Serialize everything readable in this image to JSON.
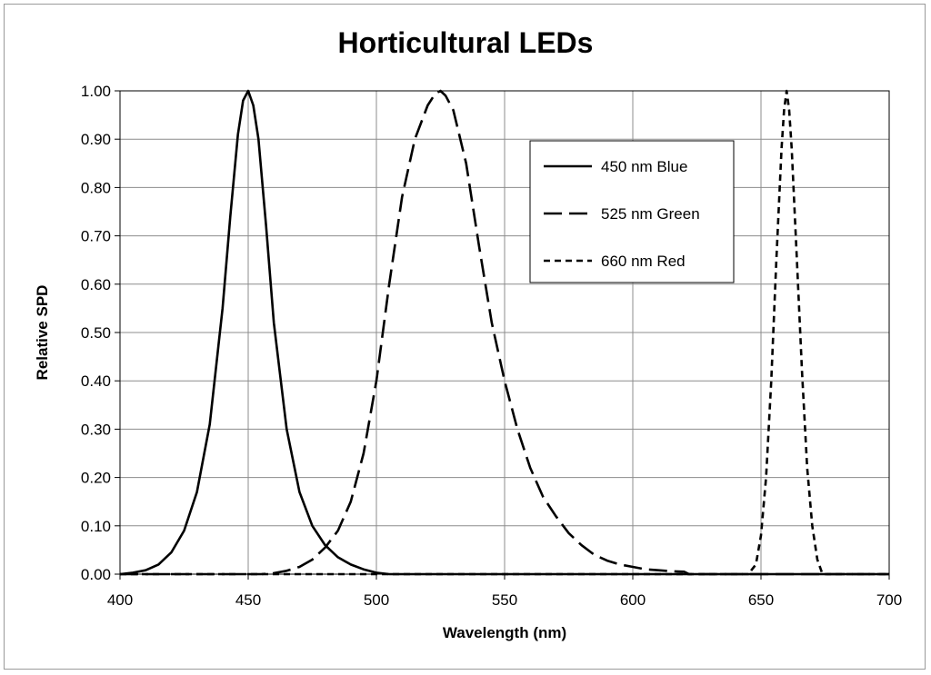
{
  "chart_data": {
    "type": "line",
    "title": "Horticultural LEDs",
    "xlabel": "Wavelength (nm)",
    "ylabel": "Relative SPD",
    "xlim": [
      400,
      700
    ],
    "ylim": [
      0,
      1
    ],
    "x_ticks": [
      "400",
      "450",
      "500",
      "550",
      "600",
      "650",
      "700"
    ],
    "y_ticks": [
      "0.00",
      "0.10",
      "0.20",
      "0.30",
      "0.40",
      "0.50",
      "0.60",
      "0.70",
      "0.80",
      "0.90",
      "1.00"
    ],
    "grid": true,
    "legend_position": "top-right",
    "series": [
      {
        "name": "450 nm Blue",
        "style": "solid",
        "x": [
          400,
          405,
          410,
          415,
          420,
          425,
          430,
          435,
          440,
          443,
          446,
          448,
          450,
          452,
          454,
          457,
          460,
          465,
          470,
          475,
          480,
          485,
          490,
          495,
          500,
          505,
          700
        ],
        "y": [
          0.0,
          0.003,
          0.008,
          0.02,
          0.045,
          0.09,
          0.17,
          0.31,
          0.55,
          0.74,
          0.91,
          0.98,
          1.0,
          0.97,
          0.9,
          0.72,
          0.52,
          0.3,
          0.17,
          0.1,
          0.06,
          0.035,
          0.02,
          0.01,
          0.003,
          0.0,
          0.0
        ]
      },
      {
        "name": "525 nm Green",
        "style": "dashed",
        "x": [
          400,
          455,
          460,
          465,
          470,
          475,
          480,
          485,
          490,
          495,
          500,
          505,
          510,
          515,
          520,
          523,
          525,
          527,
          530,
          535,
          540,
          545,
          550,
          555,
          560,
          565,
          570,
          575,
          580,
          585,
          590,
          595,
          600,
          605,
          610,
          615,
          620,
          622,
          700
        ],
        "y": [
          0.0,
          0.0,
          0.002,
          0.007,
          0.015,
          0.03,
          0.055,
          0.09,
          0.15,
          0.25,
          0.4,
          0.6,
          0.78,
          0.9,
          0.97,
          0.995,
          1.0,
          0.99,
          0.96,
          0.85,
          0.68,
          0.52,
          0.4,
          0.3,
          0.22,
          0.16,
          0.12,
          0.085,
          0.06,
          0.04,
          0.028,
          0.02,
          0.015,
          0.01,
          0.008,
          0.006,
          0.005,
          0.0,
          0.0
        ]
      },
      {
        "name": "660 nm Red",
        "style": "dotted",
        "x": [
          400,
          645,
          648,
          650,
          652,
          654,
          656,
          658,
          659,
          660,
          661,
          662,
          664,
          666,
          668,
          670,
          672,
          674,
          700
        ],
        "y": [
          0.0,
          0.0,
          0.02,
          0.08,
          0.2,
          0.4,
          0.65,
          0.88,
          0.96,
          1.0,
          0.96,
          0.88,
          0.65,
          0.42,
          0.22,
          0.1,
          0.03,
          0.0,
          0.0
        ]
      }
    ]
  }
}
